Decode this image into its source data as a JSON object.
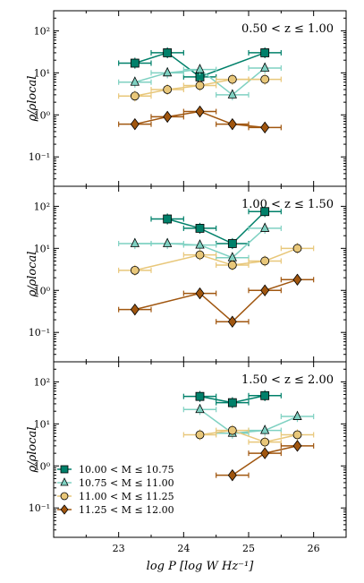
{
  "chart_data": {
    "type": "scatter",
    "x_label": "log P [log W Hz⁻¹]",
    "y_label": "ρ/ρlocal",
    "xlim": [
      22.0,
      26.5
    ],
    "ylim": [
      0.02,
      300
    ],
    "y_scale": "log",
    "x_ticks": [
      "23",
      "24",
      "25",
      "26"
    ],
    "y_ticks": [
      "10⁻¹",
      "10⁰",
      "10¹",
      "10²"
    ],
    "legend_position": "lower-left (bottom panel)",
    "series": [
      {
        "name": "10.00 < M ≤ 10.75",
        "color": "#00806a",
        "marker": "square"
      },
      {
        "name": "10.75 < M ≤ 11.00",
        "color": "#7fd1c2",
        "marker": "triangle"
      },
      {
        "name": "11.00 < M ≤ 11.25",
        "color": "#e8c77a",
        "marker": "circle"
      },
      {
        "name": "11.25 < M ≤ 12.00",
        "color": "#a0560f",
        "marker": "diamond"
      }
    ],
    "panels": [
      {
        "title": "0.50 < z ≤ 1.00",
        "series_points": [
          {
            "series": 0,
            "x": [
              23.25,
              23.75,
              24.25,
              25.25
            ],
            "y": [
              17,
              30,
              8,
              30
            ]
          },
          {
            "series": 1,
            "x": [
              23.25,
              23.75,
              24.25,
              24.75,
              25.25
            ],
            "y": [
              6,
              10,
              12,
              3,
              13
            ]
          },
          {
            "series": 2,
            "x": [
              23.25,
              23.75,
              24.25,
              24.75,
              25.25
            ],
            "y": [
              2.8,
              4,
              5,
              7,
              7
            ]
          },
          {
            "series": 3,
            "x": [
              23.25,
              23.75,
              24.25,
              24.75,
              25.25
            ],
            "y": [
              0.6,
              0.9,
              1.2,
              0.6,
              0.5
            ]
          }
        ]
      },
      {
        "title": "1.00 < z ≤ 1.50",
        "series_points": [
          {
            "series": 0,
            "x": [
              23.75,
              24.25,
              24.75,
              25.25
            ],
            "y": [
              50,
              30,
              13,
              75
            ]
          },
          {
            "series": 1,
            "x": [
              23.25,
              23.75,
              24.25,
              24.75,
              25.25
            ],
            "y": [
              13,
              13,
              12,
              6,
              30
            ]
          },
          {
            "series": 2,
            "x": [
              23.25,
              24.25,
              24.75,
              25.25,
              25.75
            ],
            "y": [
              3,
              7,
              4,
              5,
              10
            ]
          },
          {
            "series": 3,
            "x": [
              23.25,
              24.25,
              24.75,
              25.25,
              25.75
            ],
            "y": [
              0.35,
              0.85,
              0.18,
              1.0,
              1.8
            ]
          }
        ]
      },
      {
        "title": "1.50 < z ≤ 2.00",
        "series_points": [
          {
            "series": 0,
            "x": [
              24.25,
              24.75,
              25.25
            ],
            "y": [
              45,
              32,
              47
            ]
          },
          {
            "series": 1,
            "x": [
              24.25,
              24.75,
              25.25,
              25.75
            ],
            "y": [
              22,
              6,
              7,
              15
            ]
          },
          {
            "series": 2,
            "x": [
              24.25,
              24.75,
              25.25,
              25.75
            ],
            "y": [
              5.5,
              7,
              3.7,
              5.5
            ]
          },
          {
            "series": 3,
            "x": [
              24.75,
              25.25,
              25.75
            ],
            "y": [
              0.6,
              2.0,
              3.0
            ]
          }
        ]
      }
    ]
  }
}
